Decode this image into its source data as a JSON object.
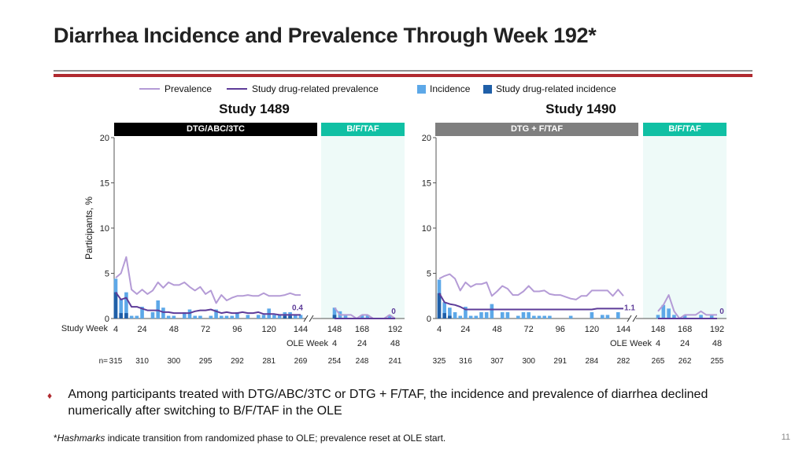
{
  "title": "Diarrhea Incidence and Prevalence Through Week 192*",
  "legend": {
    "prevalence": "Prevalence",
    "drug_prevalence": "Study drug-related prevalence",
    "incidence": "Incidence",
    "drug_incidence": "Study drug-related incidence"
  },
  "colors": {
    "prevalence": "#b49bd6",
    "drug_prevalence": "#5e3c99",
    "incidence": "#5da8e8",
    "drug_incidence": "#1f5fa8",
    "ole_shade": "#eefaf8",
    "teal": "#10c0a4",
    "accent_red": "#b02a30"
  },
  "ylabel": "Participants, %",
  "study_week_label": "Study Week",
  "ole_week_label": "OLE Week",
  "n_label": "n=",
  "chart_data": [
    {
      "type": "bar+line",
      "study": "Study 1489",
      "treatment_rand": "DTG/ABC/3TC",
      "treatment_ole": "B/F/TAF",
      "rand_header_color": "#000000",
      "ylim": [
        0,
        20
      ],
      "yticks": [
        "0",
        "5",
        "10",
        "15",
        "20"
      ],
      "study_week_ticks": [
        "4",
        "24",
        "48",
        "72",
        "96",
        "120",
        "144",
        "148",
        "168",
        "192"
      ],
      "ole_week_ticks": [
        "4",
        "24",
        "48"
      ],
      "n_values": [
        "315",
        "310",
        "300",
        "295",
        "292",
        "281",
        "269",
        "254",
        "248",
        "241"
      ],
      "end_label_rand": "0.4",
      "end_label_ole": "0",
      "rand_weeks": [
        4,
        8,
        12,
        16,
        20,
        24,
        28,
        32,
        36,
        40,
        44,
        48,
        52,
        56,
        60,
        64,
        68,
        72,
        76,
        80,
        84,
        88,
        92,
        96,
        100,
        104,
        108,
        112,
        116,
        120,
        124,
        128,
        132,
        136,
        140,
        144
      ],
      "rand_prevalence": [
        4.5,
        5,
        6.8,
        3.2,
        2.7,
        3.2,
        2.7,
        3.1,
        4,
        3.4,
        4,
        3.7,
        3.7,
        4,
        3.5,
        3.1,
        3.5,
        2.7,
        3.1,
        1.7,
        2.6,
        2,
        2.3,
        2.5,
        2.5,
        2.6,
        2.5,
        2.5,
        2.8,
        2.5,
        2.5,
        2.5,
        2.6,
        2.8,
        2.6,
        2.6
      ],
      "rand_drug_prevalence": [
        2.9,
        2.1,
        2.3,
        1.3,
        1.3,
        1.1,
        0.9,
        0.9,
        0.9,
        0.7,
        0.7,
        0.6,
        0.6,
        0.6,
        0.6,
        0.8,
        0.9,
        0.9,
        1,
        0.8,
        0.6,
        0.7,
        0.6,
        0.6,
        0.7,
        0.6,
        0.6,
        0.7,
        0.5,
        0.5,
        0.5,
        0.4,
        0.4,
        0.4,
        0.4,
        0.4
      ],
      "rand_incidence": [
        4.4,
        2.2,
        2.9,
        0.3,
        0.3,
        1.3,
        0,
        0.7,
        2,
        1.2,
        0.3,
        0.3,
        0,
        0.7,
        1,
        0.3,
        0.3,
        0,
        0.3,
        1,
        0.3,
        0.3,
        0.3,
        0.7,
        0,
        0.4,
        0,
        0.4,
        0.4,
        1.1,
        0.4,
        0.4,
        0.7,
        0.7,
        0.4,
        0.4
      ],
      "rand_drug_incidence": [
        2.9,
        0.6,
        0.6,
        0,
        0,
        0,
        0,
        0,
        0,
        0,
        0,
        0,
        0,
        0,
        0,
        0,
        0,
        0,
        0,
        0,
        0,
        0,
        0,
        0,
        0,
        0,
        0,
        0,
        0,
        0,
        0,
        0,
        0.3,
        0.3,
        0,
        0
      ],
      "ole_weeks": [
        4,
        8,
        12,
        16,
        20,
        24,
        28,
        32,
        36,
        40,
        44,
        48
      ],
      "ole_prevalence": [
        1.2,
        0.4,
        0.4,
        0.4,
        0,
        0.4,
        0.4,
        0,
        0,
        0,
        0.4,
        0
      ],
      "ole_drug_prevalence": [
        0,
        0,
        0,
        0,
        0,
        0,
        0,
        0,
        0,
        0,
        0,
        0
      ],
      "ole_incidence": [
        1.2,
        0.8,
        0.4,
        0,
        0,
        0.4,
        0.4,
        0,
        0,
        0,
        0.4,
        0
      ],
      "ole_drug_incidence": [
        0.4,
        0,
        0,
        0,
        0,
        0,
        0,
        0,
        0,
        0,
        0,
        0
      ]
    },
    {
      "type": "bar+line",
      "study": "Study 1490",
      "treatment_rand": "DTG + F/TAF",
      "treatment_ole": "B/F/TAF",
      "rand_header_color": "#7f7f7f",
      "ylim": [
        0,
        20
      ],
      "yticks": [
        "0",
        "5",
        "10",
        "15",
        "20"
      ],
      "study_week_ticks": [
        "4",
        "24",
        "48",
        "72",
        "96",
        "120",
        "144",
        "148",
        "168",
        "192"
      ],
      "ole_week_ticks": [
        "4",
        "24",
        "48"
      ],
      "n_values": [
        "325",
        "316",
        "307",
        "300",
        "291",
        "284",
        "282",
        "265",
        "262",
        "255"
      ],
      "end_label_rand": "1.1",
      "end_label_ole": "0",
      "rand_weeks": [
        4,
        8,
        12,
        16,
        20,
        24,
        28,
        32,
        36,
        40,
        44,
        48,
        52,
        56,
        60,
        64,
        68,
        72,
        76,
        80,
        84,
        88,
        92,
        96,
        100,
        104,
        108,
        112,
        116,
        120,
        124,
        128,
        132,
        136,
        140,
        144
      ],
      "rand_prevalence": [
        4.4,
        4.7,
        4.9,
        4.4,
        3.1,
        4,
        3.5,
        3.8,
        3.8,
        4,
        2.5,
        3,
        3.6,
        3.3,
        2.6,
        2.6,
        3,
        3.6,
        3,
        3,
        3.1,
        2.7,
        2.6,
        2.6,
        2.4,
        2.2,
        2.1,
        2.5,
        2.5,
        3.1,
        3.1,
        3.1,
        3.1,
        2.5,
        3.2,
        2.5
      ],
      "rand_drug_prevalence": [
        2.8,
        1.8,
        1.6,
        1.5,
        1.3,
        1,
        1,
        1,
        1,
        1,
        1,
        1,
        1,
        1,
        1,
        1,
        1,
        1,
        1,
        1,
        1,
        1,
        1,
        1,
        1,
        1,
        1,
        1,
        1,
        1,
        1.1,
        1.1,
        1.1,
        1.1,
        1.1,
        1.1
      ],
      "rand_incidence": [
        4.3,
        1.8,
        1.2,
        0.7,
        0.3,
        1.3,
        0.3,
        0.3,
        0.7,
        0.7,
        1.6,
        0,
        0.7,
        0.7,
        0,
        0.3,
        0.7,
        0.7,
        0.3,
        0.3,
        0.3,
        0.3,
        0,
        0,
        0,
        0.3,
        0,
        0,
        0,
        0.7,
        0,
        0.4,
        0.4,
        0,
        0.7,
        0
      ],
      "rand_drug_incidence": [
        2.8,
        0.6,
        0.3,
        0,
        0,
        0,
        0,
        0,
        0,
        0,
        0,
        0,
        0,
        0,
        0,
        0,
        0,
        0,
        0,
        0,
        0,
        0,
        0,
        0,
        0,
        0,
        0,
        0,
        0,
        0,
        0,
        0,
        0,
        0,
        0,
        0
      ],
      "ole_weeks": [
        4,
        8,
        12,
        16,
        20,
        24,
        28,
        32,
        36,
        40,
        44,
        48
      ],
      "ole_prevalence": [
        0.8,
        1.5,
        2.6,
        0.8,
        0,
        0.4,
        0.4,
        0.4,
        0.8,
        0.4,
        0.4,
        0.4
      ],
      "ole_drug_prevalence": [
        0,
        0,
        0,
        0,
        0,
        0,
        0,
        0,
        0,
        0,
        0,
        0
      ],
      "ole_incidence": [
        0.4,
        1.5,
        1.1,
        0.4,
        0,
        0.4,
        0,
        0,
        0.4,
        0,
        0.4,
        0
      ],
      "ole_drug_incidence": [
        0,
        0,
        0,
        0,
        0,
        0,
        0,
        0,
        0,
        0,
        0,
        0
      ]
    }
  ],
  "bullet": "Among participants treated with DTG/ABC/3TC or DTG + F/TAF, the incidence and prevalence of diarrhea declined numerically after switching to B/F/TAF in the OLE",
  "footnote_italic": "Hashmarks",
  "footnote_rest": " indicate transition from randomized phase to OLE; prevalence reset at OLE start.",
  "page_number": "11"
}
